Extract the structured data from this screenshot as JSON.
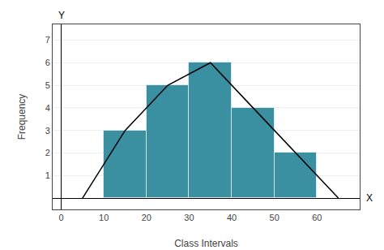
{
  "chart_data": {
    "type": "histogram",
    "xlabel": "Class Intervals",
    "ylabel": "Frequency",
    "bins": [
      10,
      20,
      30,
      40,
      50,
      60
    ],
    "values": [
      3,
      5,
      6,
      4,
      2
    ],
    "color": "#3a8fa0",
    "series": [
      {
        "type": "line",
        "x": [
          5,
          15,
          25,
          35,
          45,
          55,
          65
        ],
        "values": [
          0,
          3,
          5,
          6,
          4,
          2,
          0
        ],
        "color": "#000000"
      }
    ],
    "annotations": [
      "X",
      "Y"
    ],
    "xlim": [
      -2,
      70
    ],
    "ylim": [
      -0.5,
      7.7
    ],
    "xticks": [
      0,
      10,
      20,
      30,
      40,
      50,
      60
    ],
    "yticks": [
      1,
      2,
      3,
      4,
      5,
      6,
      7
    ],
    "grid": true
  }
}
